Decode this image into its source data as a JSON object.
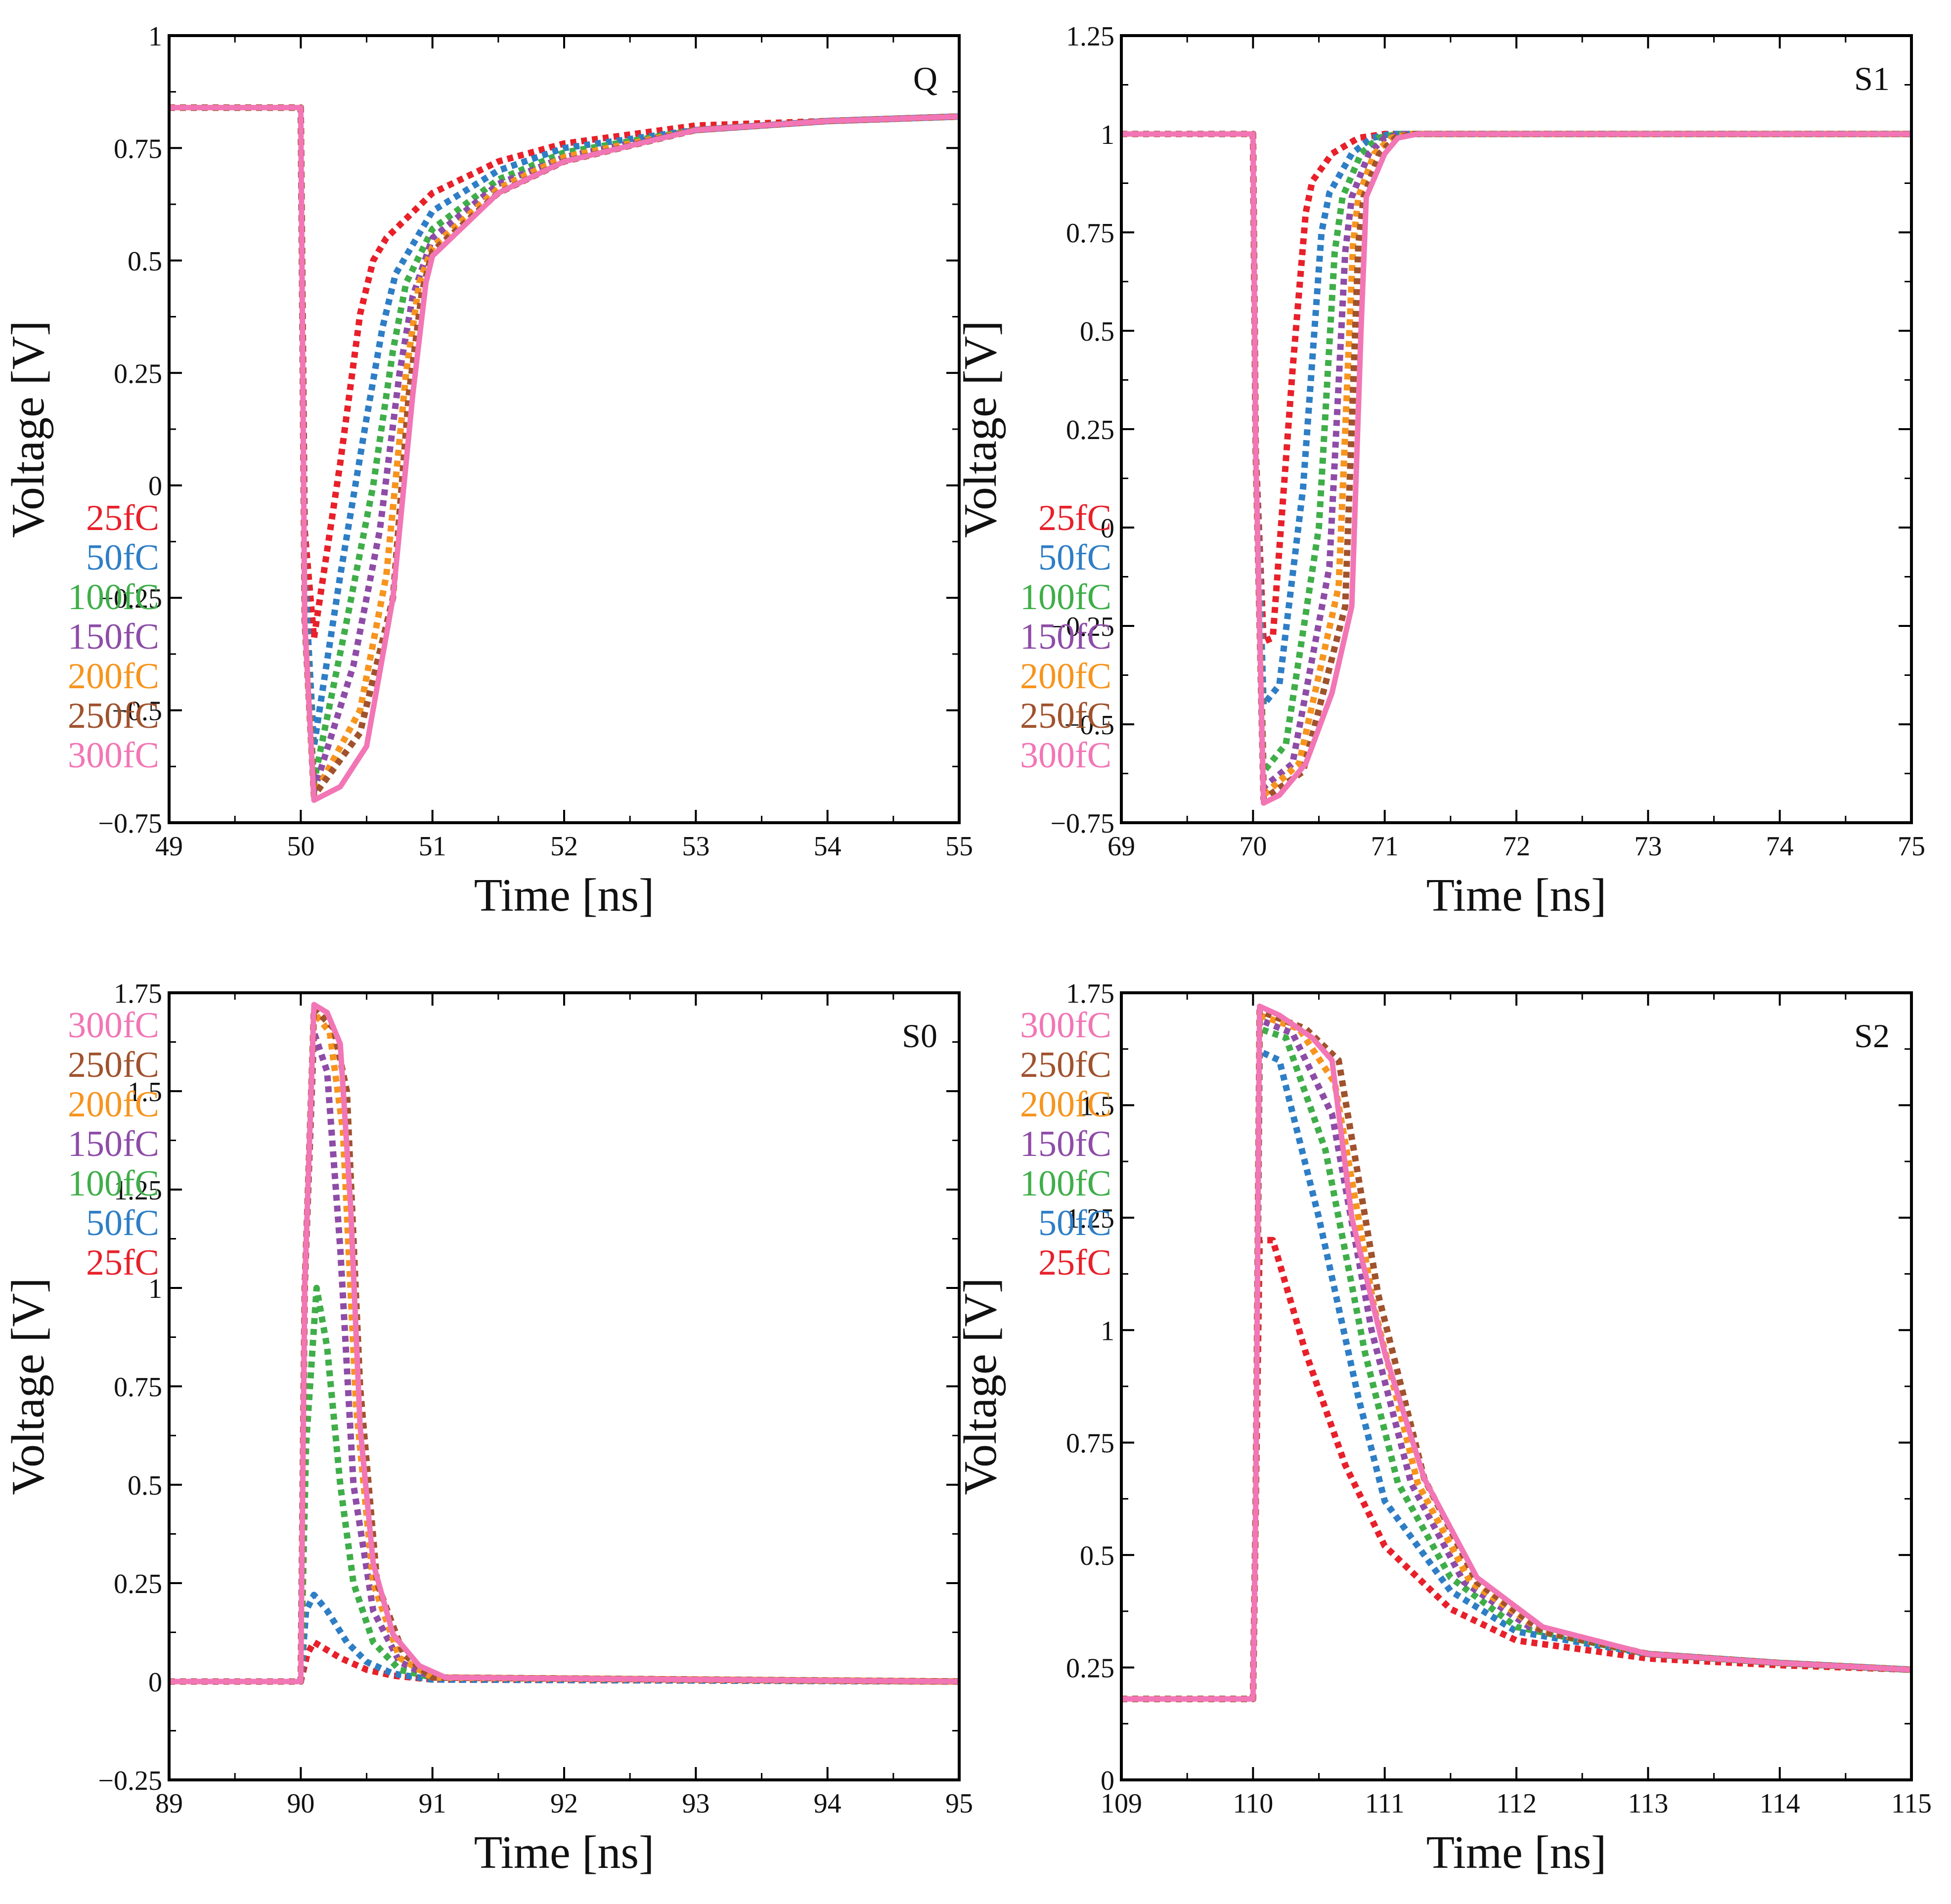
{
  "series_meta": [
    {
      "label": "25fC",
      "color": "#e8202a",
      "dashed": true
    },
    {
      "label": "50fC",
      "color": "#2e7ec6",
      "dashed": true
    },
    {
      "label": "100fC",
      "color": "#3fae49",
      "dashed": true
    },
    {
      "label": "150fC",
      "color": "#8e4ca7",
      "dashed": true
    },
    {
      "label": "200fC",
      "color": "#f7941d",
      "dashed": true
    },
    {
      "label": "250fC",
      "color": "#a0522d",
      "dashed": true
    },
    {
      "label": "300fC",
      "color": "#f276b5",
      "dashed": false
    }
  ],
  "chart_data": [
    {
      "type": "line",
      "panel": "Q",
      "title": "Q",
      "xlabel": "Time [ns]",
      "ylabel": "Voltage [V]",
      "xlim": [
        49,
        55
      ],
      "ylim": [
        -0.75,
        1
      ],
      "xticks": [
        49,
        50,
        51,
        52,
        53,
        54,
        55
      ],
      "yticks": [
        -0.75,
        -0.5,
        -0.25,
        0,
        0.25,
        0.5,
        0.75,
        1
      ],
      "ytick_labels": [
        "−0.75",
        "−0.5",
        "−0.25",
        "0",
        "0.25",
        "0.5",
        "0.75",
        "1"
      ],
      "legend_order": [
        "25fC",
        "50fC",
        "100fC",
        "150fC",
        "200fC",
        "250fC",
        "300fC"
      ],
      "legend_position": "lower-left",
      "series": [
        {
          "name": "25fC",
          "x": [
            49,
            50,
            50.03,
            50.1,
            50.3,
            50.45,
            50.55,
            50.65,
            51.0,
            51.5,
            52.0,
            53.0,
            54.0,
            55.0
          ],
          "y": [
            0.84,
            0.84,
            -0.1,
            -0.34,
            0.05,
            0.38,
            0.5,
            0.55,
            0.65,
            0.72,
            0.76,
            0.8,
            0.81,
            0.82
          ]
        },
        {
          "name": "50fC",
          "x": [
            49,
            50,
            50.03,
            50.1,
            50.3,
            50.5,
            50.62,
            50.72,
            51.0,
            51.5,
            52.0,
            53.0,
            54.0,
            55.0
          ],
          "y": [
            0.84,
            0.84,
            -0.2,
            -0.58,
            -0.2,
            0.15,
            0.35,
            0.47,
            0.61,
            0.7,
            0.75,
            0.79,
            0.81,
            0.82
          ]
        },
        {
          "name": "100fC",
          "x": [
            49,
            50,
            50.03,
            50.1,
            50.35,
            50.55,
            50.7,
            50.8,
            51.0,
            51.5,
            52.0,
            53.0,
            54.0,
            55.0
          ],
          "y": [
            0.84,
            0.84,
            -0.3,
            -0.66,
            -0.3,
            0.0,
            0.3,
            0.45,
            0.57,
            0.68,
            0.74,
            0.79,
            0.81,
            0.82
          ]
        },
        {
          "name": "150fC",
          "x": [
            49,
            50,
            50.03,
            50.1,
            50.4,
            50.6,
            50.75,
            50.85,
            51.0,
            51.5,
            52.0,
            53.0,
            54.0,
            55.0
          ],
          "y": [
            0.84,
            0.84,
            -0.3,
            -0.68,
            -0.4,
            -0.1,
            0.25,
            0.42,
            0.55,
            0.67,
            0.73,
            0.79,
            0.81,
            0.82
          ]
        },
        {
          "name": "200fC",
          "x": [
            49,
            50,
            50.03,
            50.1,
            50.45,
            50.65,
            50.8,
            50.9,
            51.0,
            51.5,
            52.0,
            53.0,
            54.0,
            55.0
          ],
          "y": [
            0.84,
            0.84,
            -0.3,
            -0.69,
            -0.5,
            -0.2,
            0.25,
            0.45,
            0.53,
            0.66,
            0.73,
            0.79,
            0.81,
            0.82
          ]
        },
        {
          "name": "250fC",
          "x": [
            49,
            50,
            50.03,
            50.1,
            50.45,
            50.7,
            50.82,
            50.92,
            51.0,
            51.5,
            52.0,
            53.0,
            54.0,
            55.0
          ],
          "y": [
            0.84,
            0.84,
            -0.3,
            -0.69,
            -0.55,
            -0.25,
            0.2,
            0.43,
            0.52,
            0.65,
            0.72,
            0.79,
            0.81,
            0.82
          ]
        },
        {
          "name": "300fC",
          "x": [
            49,
            50,
            50.03,
            50.1,
            50.3,
            50.5,
            50.7,
            50.85,
            50.95,
            51.0,
            51.5,
            52.0,
            53.0,
            54.0,
            55.0
          ],
          "y": [
            0.84,
            0.84,
            -0.3,
            -0.7,
            -0.67,
            -0.58,
            -0.25,
            0.2,
            0.45,
            0.51,
            0.65,
            0.72,
            0.79,
            0.81,
            0.82
          ]
        }
      ]
    },
    {
      "type": "line",
      "panel": "S1",
      "title": "S1",
      "xlabel": "Time [ns]",
      "ylabel": "Voltage [V]",
      "xlim": [
        69,
        75
      ],
      "ylim": [
        -0.75,
        1.25
      ],
      "xticks": [
        69,
        70,
        71,
        72,
        73,
        74,
        75
      ],
      "yticks": [
        -0.75,
        -0.5,
        -0.25,
        0,
        0.25,
        0.5,
        0.75,
        1,
        1.25
      ],
      "ytick_labels": [
        "−0.75",
        "−0.5",
        "−0.25",
        "0",
        "0.25",
        "0.5",
        "0.75",
        "1",
        "1.25"
      ],
      "legend_order": [
        "25fC",
        "50fC",
        "100fC",
        "150fC",
        "200fC",
        "250fC",
        "300fC"
      ],
      "legend_position": "lower-left",
      "series": [
        {
          "name": "25fC",
          "x": [
            69,
            70,
            70.02,
            70.08,
            70.15,
            70.3,
            70.4,
            70.45,
            70.6,
            70.8,
            71.0,
            75
          ],
          "y": [
            1,
            1,
            0.2,
            -0.29,
            -0.28,
            0.4,
            0.8,
            0.88,
            0.95,
            0.99,
            1,
            1
          ]
        },
        {
          "name": "50fC",
          "x": [
            69,
            70,
            70.02,
            70.08,
            70.2,
            70.38,
            70.52,
            70.58,
            70.75,
            70.9,
            71.05,
            75
          ],
          "y": [
            1,
            1,
            0.2,
            -0.45,
            -0.4,
            0.1,
            0.75,
            0.85,
            0.95,
            0.99,
            1,
            1
          ]
        },
        {
          "name": "100fC",
          "x": [
            69,
            70,
            70.02,
            70.08,
            70.25,
            70.5,
            70.62,
            70.68,
            70.82,
            70.95,
            71.1,
            75
          ],
          "y": [
            1,
            1,
            0.2,
            -0.62,
            -0.55,
            0.0,
            0.7,
            0.84,
            0.95,
            0.99,
            1,
            1
          ]
        },
        {
          "name": "150fC",
          "x": [
            69,
            70,
            70.02,
            70.08,
            70.3,
            70.58,
            70.7,
            70.75,
            70.88,
            71.0,
            71.15,
            75
          ],
          "y": [
            1,
            1,
            0.2,
            -0.66,
            -0.6,
            -0.1,
            0.7,
            0.84,
            0.95,
            0.99,
            1,
            1
          ]
        },
        {
          "name": "200fC",
          "x": [
            69,
            70,
            70.02,
            70.08,
            70.35,
            70.65,
            70.76,
            70.8,
            70.92,
            71.05,
            71.2,
            75
          ],
          "y": [
            1,
            1,
            0.2,
            -0.68,
            -0.6,
            -0.15,
            0.72,
            0.84,
            0.95,
            0.99,
            1,
            1
          ]
        },
        {
          "name": "250fC",
          "x": [
            69,
            70,
            70.02,
            70.08,
            70.38,
            70.7,
            70.8,
            70.84,
            70.96,
            71.08,
            71.22,
            75
          ],
          "y": [
            1,
            1,
            0.2,
            -0.69,
            -0.62,
            -0.2,
            0.72,
            0.84,
            0.95,
            0.99,
            1,
            1
          ]
        },
        {
          "name": "300fC",
          "x": [
            69,
            70,
            70.02,
            70.08,
            70.2,
            70.4,
            70.6,
            70.75,
            70.82,
            70.86,
            71.0,
            71.1,
            71.25,
            75
          ],
          "y": [
            1,
            1,
            0.2,
            -0.7,
            -0.68,
            -0.6,
            -0.42,
            -0.2,
            0.5,
            0.84,
            0.95,
            0.99,
            1,
            1
          ]
        }
      ]
    },
    {
      "type": "line",
      "panel": "S0",
      "title": "S0",
      "xlabel": "Time [ns]",
      "ylabel": "Voltage [V]",
      "xlim": [
        89,
        95
      ],
      "ylim": [
        -0.25,
        1.75
      ],
      "xticks": [
        89,
        90,
        91,
        92,
        93,
        94,
        95
      ],
      "yticks": [
        -0.25,
        0,
        0.25,
        0.5,
        0.75,
        1,
        1.25,
        1.5,
        1.75
      ],
      "ytick_labels": [
        "−0.25",
        "0",
        "0.25",
        "0.5",
        "0.75",
        "1",
        "1.25",
        "1.5",
        "1.75"
      ],
      "legend_order": [
        "300fC",
        "250fC",
        "200fC",
        "150fC",
        "100fC",
        "50fC",
        "25fC"
      ],
      "legend_position": "upper-left",
      "series": [
        {
          "name": "25fC",
          "x": [
            89,
            90,
            90.05,
            90.1,
            90.3,
            90.5,
            90.7,
            91.0,
            95
          ],
          "y": [
            0,
            0,
            0.07,
            0.1,
            0.06,
            0.03,
            0.015,
            0.005,
            0
          ]
        },
        {
          "name": "50fC",
          "x": [
            89,
            90,
            90.04,
            90.1,
            90.2,
            90.35,
            90.5,
            90.7,
            91.0,
            95
          ],
          "y": [
            0,
            0,
            0.18,
            0.22,
            0.18,
            0.1,
            0.05,
            0.02,
            0.005,
            0
          ]
        },
        {
          "name": "100fC",
          "x": [
            89,
            90,
            90.04,
            90.12,
            90.2,
            90.3,
            90.4,
            90.55,
            90.75,
            91.0,
            95
          ],
          "y": [
            0,
            0,
            0.6,
            1.0,
            0.85,
            0.5,
            0.25,
            0.1,
            0.03,
            0.01,
            0
          ]
        },
        {
          "name": "150fC",
          "x": [
            89,
            90,
            90.03,
            90.1,
            90.2,
            90.3,
            90.4,
            90.55,
            90.75,
            91.0,
            95
          ],
          "y": [
            0,
            0,
            1.0,
            1.65,
            1.55,
            1.1,
            0.5,
            0.18,
            0.05,
            0.01,
            0
          ]
        },
        {
          "name": "200fC",
          "x": [
            89,
            90,
            90.03,
            90.1,
            90.22,
            90.32,
            90.42,
            90.55,
            90.75,
            91.0,
            95
          ],
          "y": [
            0,
            0,
            1.0,
            1.7,
            1.65,
            1.4,
            0.7,
            0.25,
            0.06,
            0.01,
            0
          ]
        },
        {
          "name": "250fC",
          "x": [
            89,
            90,
            90.03,
            90.1,
            90.25,
            90.35,
            90.45,
            90.58,
            90.78,
            91.0,
            95
          ],
          "y": [
            0,
            0,
            1.0,
            1.71,
            1.66,
            1.5,
            0.75,
            0.25,
            0.07,
            0.01,
            0
          ]
        },
        {
          "name": "300fC",
          "x": [
            89,
            90,
            90.03,
            90.1,
            90.2,
            90.3,
            90.38,
            90.45,
            90.55,
            90.7,
            90.9,
            91.1,
            95
          ],
          "y": [
            0,
            0,
            1.0,
            1.72,
            1.7,
            1.62,
            1.2,
            0.65,
            0.3,
            0.12,
            0.04,
            0.01,
            0
          ]
        }
      ]
    },
    {
      "type": "line",
      "panel": "S2",
      "title": "S2",
      "xlabel": "Time [ns]",
      "ylabel": "Voltage [V]",
      "xlim": [
        109,
        115
      ],
      "ylim": [
        0,
        1.75
      ],
      "xticks": [
        109,
        110,
        111,
        112,
        113,
        114,
        115
      ],
      "yticks": [
        0,
        0.25,
        0.5,
        0.75,
        1,
        1.25,
        1.5,
        1.75
      ],
      "ytick_labels": [
        "0",
        "0.25",
        "0.5",
        "0.75",
        "1",
        "1.25",
        "1.5",
        "1.75"
      ],
      "legend_order": [
        "300fC",
        "250fC",
        "200fC",
        "150fC",
        "100fC",
        "50fC",
        "25fC"
      ],
      "legend_position": "upper-left",
      "series": [
        {
          "name": "25fC",
          "x": [
            109,
            110,
            110.02,
            110.05,
            110.15,
            110.4,
            110.7,
            111.0,
            111.5,
            112.0,
            113.0,
            114.0,
            115.0
          ],
          "y": [
            0.18,
            0.18,
            0.6,
            1.2,
            1.2,
            0.95,
            0.7,
            0.52,
            0.38,
            0.31,
            0.27,
            0.255,
            0.245
          ]
        },
        {
          "name": "50fC",
          "x": [
            109,
            110,
            110.02,
            110.05,
            110.2,
            110.5,
            110.8,
            111.0,
            111.5,
            112.0,
            113.0,
            114.0,
            115.0
          ],
          "y": [
            0.18,
            0.18,
            0.6,
            1.62,
            1.6,
            1.25,
            0.85,
            0.62,
            0.42,
            0.33,
            0.28,
            0.26,
            0.245
          ]
        },
        {
          "name": "100fC",
          "x": [
            109,
            110,
            110.02,
            110.05,
            110.25,
            110.55,
            110.85,
            111.1,
            111.5,
            112.0,
            113.0,
            114.0,
            115.0
          ],
          "y": [
            0.18,
            0.18,
            0.6,
            1.67,
            1.65,
            1.4,
            0.95,
            0.66,
            0.45,
            0.34,
            0.28,
            0.26,
            0.245
          ]
        },
        {
          "name": "150fC",
          "x": [
            109,
            110,
            110.02,
            110.05,
            110.3,
            110.6,
            110.9,
            111.2,
            111.6,
            112.1,
            113.0,
            114.0,
            115.0
          ],
          "y": [
            0.18,
            0.18,
            0.6,
            1.69,
            1.66,
            1.48,
            1.0,
            0.66,
            0.44,
            0.34,
            0.28,
            0.26,
            0.245
          ]
        },
        {
          "name": "200fC",
          "x": [
            109,
            110,
            110.02,
            110.05,
            110.35,
            110.62,
            110.92,
            111.25,
            111.65,
            112.2,
            113.0,
            114.0,
            115.0
          ],
          "y": [
            0.18,
            0.18,
            0.6,
            1.7,
            1.67,
            1.55,
            1.05,
            0.66,
            0.44,
            0.33,
            0.28,
            0.26,
            0.245
          ]
        },
        {
          "name": "250fC",
          "x": [
            109,
            110,
            110.02,
            110.05,
            110.4,
            110.65,
            110.95,
            111.3,
            111.7,
            112.2,
            113.0,
            114.0,
            115.0
          ],
          "y": [
            0.18,
            0.18,
            0.6,
            1.71,
            1.67,
            1.6,
            1.08,
            0.67,
            0.44,
            0.33,
            0.28,
            0.26,
            0.245
          ]
        },
        {
          "name": "300fC",
          "x": [
            109,
            110,
            110.02,
            110.05,
            110.2,
            110.45,
            110.6,
            110.75,
            111.0,
            111.3,
            111.7,
            112.2,
            113.0,
            114.0,
            115.0
          ],
          "y": [
            0.18,
            0.18,
            0.6,
            1.72,
            1.7,
            1.65,
            1.6,
            1.25,
            0.95,
            0.67,
            0.45,
            0.34,
            0.28,
            0.26,
            0.245
          ]
        }
      ]
    }
  ]
}
